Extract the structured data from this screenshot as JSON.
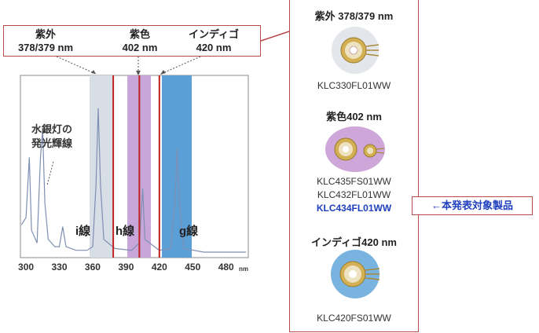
{
  "callouts": {
    "uv": {
      "line1": "紫外",
      "line2": "378/379 nm"
    },
    "violet": {
      "line1": "紫色",
      "line2": "402 nm"
    },
    "indigo": {
      "line1": "インディゴ",
      "line2": "420 nm"
    }
  },
  "spectrum": {
    "mercury_label_line1": "水銀灯の",
    "mercury_label_line2": "発光輝線",
    "i_line": "i線",
    "h_line": "h線",
    "g_line": "g線",
    "unit": "nm",
    "colors": {
      "uv_band": "#d8dee6",
      "violet_band": "#c9a6d9",
      "indigo_band": "#5a9fd6",
      "laser_line": "#c02020",
      "spectrum_line": "#7f8fb3"
    }
  },
  "chart_data": {
    "type": "line",
    "x_ticks": [
      "300",
      "330",
      "360",
      "390",
      "420",
      "450",
      "480"
    ],
    "xlim": [
      295,
      500
    ],
    "peaks": [
      {
        "name": "i線",
        "x": 365
      },
      {
        "name": "h線",
        "x": 405
      },
      {
        "name": "g線",
        "x": 436
      }
    ],
    "laser_lines": [
      378.5,
      402,
      420
    ]
  },
  "panel": {
    "uv": {
      "title": "紫外 378/379 nm",
      "models": [
        "KLC330FL01WW"
      ]
    },
    "violet": {
      "title": "紫色402 nm",
      "models": [
        "KLC435FS01WW",
        "KLC432FL01WW"
      ],
      "highlight": "KLC434FL01WW"
    },
    "indigo": {
      "title": "インディゴ420 nm",
      "models": [
        "KLC420FS01WW"
      ]
    }
  },
  "note": "←本発表対象製品"
}
